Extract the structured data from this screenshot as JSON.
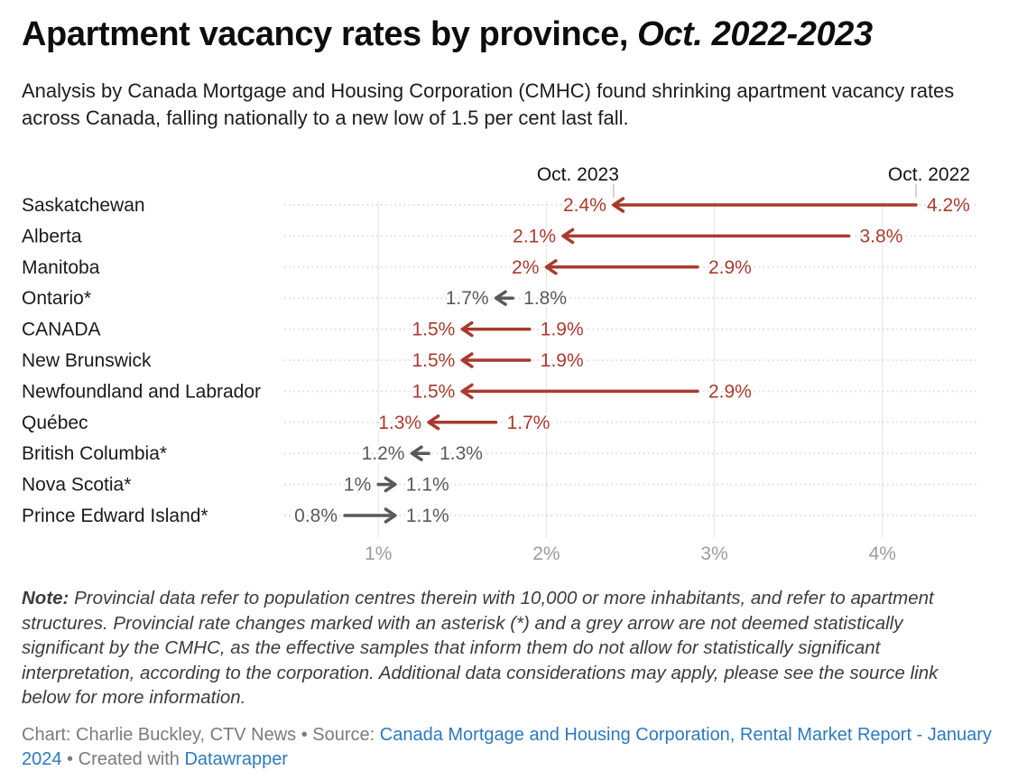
{
  "page": {
    "title_main": "Apartment vacancy rates by province, ",
    "title_italic": "Oct. 2022-2023",
    "subtitle": "Analysis by Canada Mortgage and Housing Corporation (CMHC) found shrinking apartment vacancy rates across Canada, falling nationally to a new low of 1.5 per cent last fall."
  },
  "note": {
    "label": "Note:",
    "text": " Provincial data refer to population centres therein with 10,000 or more inhabitants, and refer to apartment structures. Provincial rate changes marked with an asterisk (*) and a grey arrow are not deemed statistically significant by the CMHC, as the effective samples that inform them do not allow for statistically significant interpretation, according to the corporation. Additional data considerations may apply, please see the source link below for more information."
  },
  "footer": {
    "chart_credit": "Chart: Charlie Buckley, CTV News",
    "separator": " • ",
    "source_label": "Source: ",
    "source_link": "Canada Mortgage and Housing Corporation, Rental Market Report - January 2024",
    "created_with": "Created with ",
    "created_link": "Datawrapper"
  },
  "chart_data": {
    "type": "arrow",
    "title": "Apartment vacancy rates by province, Oct. 2022-2023",
    "column_headers": [
      {
        "label": "Oct. 2023",
        "tick_value": 2.4
      },
      {
        "label": "Oct. 2022",
        "tick_value": 4.2
      }
    ],
    "x_axis": {
      "domain": [
        0.44,
        4.56
      ],
      "ticks": [
        1,
        2,
        3,
        4
      ],
      "tick_labels": [
        "1%",
        "2%",
        "3%",
        "4%"
      ],
      "grid": true
    },
    "colors": {
      "significant": "#a93a2e",
      "not_significant": "#5a5a5a",
      "grid": "#e4e4e4",
      "dotted_line": "#dcdcdc",
      "axis_text": "#9b9b9b",
      "header_text": "#141414",
      "row_label": "#1a1a1a"
    },
    "rows": [
      {
        "label": "Saskatchewan",
        "oct_2022": 4.2,
        "oct_2023": 2.4,
        "label_2022": "4.2%",
        "label_2023": "2.4%",
        "significant": true
      },
      {
        "label": "Alberta",
        "oct_2022": 3.8,
        "oct_2023": 2.1,
        "label_2022": "3.8%",
        "label_2023": "2.1%",
        "significant": true
      },
      {
        "label": "Manitoba",
        "oct_2022": 2.9,
        "oct_2023": 2.0,
        "label_2022": "2.9%",
        "label_2023": "2%",
        "significant": true
      },
      {
        "label": "Ontario*",
        "oct_2022": 1.8,
        "oct_2023": 1.7,
        "label_2022": "1.8%",
        "label_2023": "1.7%",
        "significant": false
      },
      {
        "label": "CANADA",
        "oct_2022": 1.9,
        "oct_2023": 1.5,
        "label_2022": "1.9%",
        "label_2023": "1.5%",
        "significant": true
      },
      {
        "label": "New Brunswick",
        "oct_2022": 1.9,
        "oct_2023": 1.5,
        "label_2022": "1.9%",
        "label_2023": "1.5%",
        "significant": true
      },
      {
        "label": "Newfoundland and Labrador",
        "oct_2022": 2.9,
        "oct_2023": 1.5,
        "label_2022": "2.9%",
        "label_2023": "1.5%",
        "significant": true
      },
      {
        "label": "Québec",
        "oct_2022": 1.7,
        "oct_2023": 1.3,
        "label_2022": "1.7%",
        "label_2023": "1.3%",
        "significant": true
      },
      {
        "label": "British Columbia*",
        "oct_2022": 1.3,
        "oct_2023": 1.2,
        "label_2022": "1.3%",
        "label_2023": "1.2%",
        "significant": false
      },
      {
        "label": "Nova Scotia*",
        "oct_2022": 1.0,
        "oct_2023": 1.1,
        "label_2022": "1%",
        "label_2023": "1.1%",
        "significant": false
      },
      {
        "label": "Prince Edward Island*",
        "oct_2022": 0.8,
        "oct_2023": 1.1,
        "label_2022": "0.8%",
        "label_2023": "1.1%",
        "significant": false
      }
    ]
  }
}
